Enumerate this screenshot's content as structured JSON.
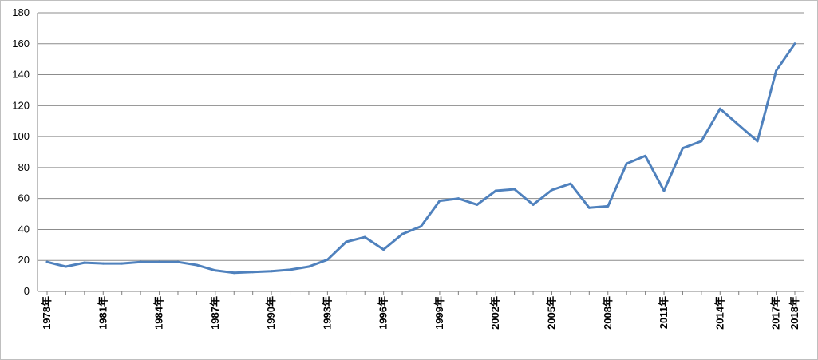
{
  "chart_data": {
    "type": "line",
    "title": "",
    "xlabel": "",
    "ylabel": "",
    "ylim": [
      0,
      180
    ],
    "y_ticks": [
      "0",
      "20",
      "40",
      "60",
      "80",
      "100",
      "120",
      "140",
      "160",
      "180"
    ],
    "grid": true,
    "legend": "none",
    "x": [
      1978,
      1979,
      1980,
      1981,
      1982,
      1983,
      1984,
      1985,
      1986,
      1987,
      1988,
      1989,
      1990,
      1991,
      1992,
      1993,
      1994,
      1995,
      1996,
      1997,
      1998,
      1999,
      2000,
      2001,
      2002,
      2003,
      2004,
      2005,
      2006,
      2007,
      2008,
      2009,
      2010,
      2011,
      2012,
      2013,
      2014,
      2015,
      2016,
      2017,
      2018
    ],
    "x_tick_labels": [
      {
        "year": 1978,
        "label": "1978年"
      },
      {
        "year": 1981,
        "label": "1981年"
      },
      {
        "year": 1984,
        "label": "1984年"
      },
      {
        "year": 1987,
        "label": "1987年"
      },
      {
        "year": 1990,
        "label": "1990年"
      },
      {
        "year": 1993,
        "label": "1993年"
      },
      {
        "year": 1996,
        "label": "1996年"
      },
      {
        "year": 1999,
        "label": "1999年"
      },
      {
        "year": 2002,
        "label": "2002年"
      },
      {
        "year": 2005,
        "label": "2005年"
      },
      {
        "year": 2008,
        "label": "2008年"
      },
      {
        "year": 2011,
        "label": "2011年"
      },
      {
        "year": 2014,
        "label": "2014年"
      },
      {
        "year": 2017,
        "label": "2017年"
      },
      {
        "year": 2018,
        "label": "2018年"
      }
    ],
    "series": [
      {
        "color": "#4f81bd",
        "values": [
          19,
          16,
          18.5,
          18,
          18,
          19,
          19,
          19,
          17,
          13.5,
          12,
          12.5,
          13,
          14,
          16,
          20.5,
          32,
          35,
          27,
          37,
          42,
          58.5,
          60,
          56,
          65,
          66,
          56,
          65.5,
          69.5,
          54,
          55,
          82.5,
          87.5,
          65,
          92.5,
          97,
          118,
          107.5,
          97,
          142.5,
          160
        ]
      }
    ]
  }
}
